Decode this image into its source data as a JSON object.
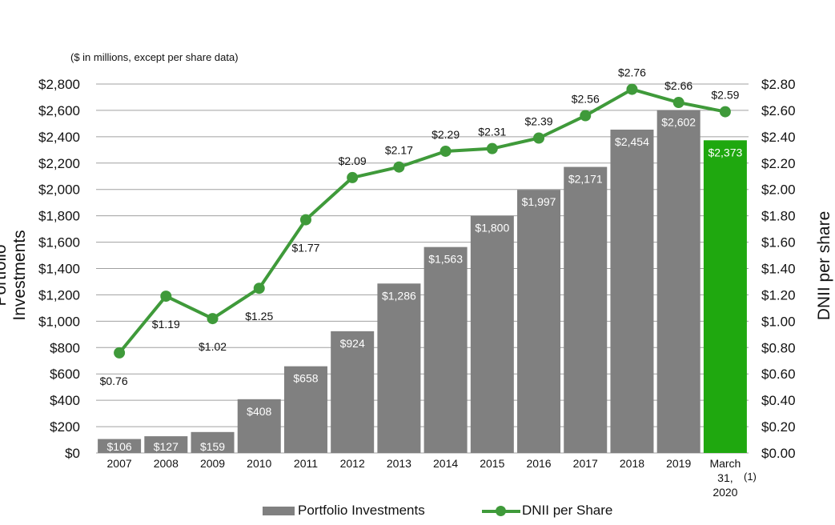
{
  "chart_data": {
    "type": "bar+line",
    "subtitle": "($ in millions, except per share data)",
    "categories": [
      "2007",
      "2008",
      "2009",
      "2010",
      "2011",
      "2012",
      "2013",
      "2014",
      "2015",
      "2016",
      "2017",
      "2018",
      "2019",
      "March 31, 2020"
    ],
    "category_lines": [
      [
        "2007"
      ],
      [
        "2008"
      ],
      [
        "2009"
      ],
      [
        "2010"
      ],
      [
        "2011"
      ],
      [
        "2012"
      ],
      [
        "2013"
      ],
      [
        "2014"
      ],
      [
        "2015"
      ],
      [
        "2016"
      ],
      [
        "2017"
      ],
      [
        "2018"
      ],
      [
        "2019"
      ],
      [
        "March",
        "31,",
        "2020"
      ]
    ],
    "footnote": "(1)",
    "left_axis": {
      "label": "Portfolio Investments",
      "ylim": [
        0,
        2800
      ],
      "ticks": [
        0,
        200,
        400,
        600,
        800,
        1000,
        1200,
        1400,
        1600,
        1800,
        2000,
        2200,
        2400,
        2600,
        2800
      ],
      "tick_labels": [
        "$0",
        "$200",
        "$400",
        "$600",
        "$800",
        "$1,000",
        "$1,200",
        "$1,400",
        "$1,600",
        "$1,800",
        "$2,000",
        "$2,200",
        "$2,400",
        "$2,600",
        "$2,800"
      ]
    },
    "right_axis": {
      "label": "DNII per share",
      "ylim": [
        0,
        2.8
      ],
      "tick_labels": [
        "$0.00",
        "$0.20",
        "$0.40",
        "$0.60",
        "$0.80",
        "$1.00",
        "$1.20",
        "$1.40",
        "$1.60",
        "$1.80",
        "$2.00",
        "$2.20",
        "$2.40",
        "$2.60",
        "$2.80"
      ]
    },
    "series": [
      {
        "name": "Portfolio Investments",
        "type": "bar",
        "axis": "left",
        "values": [
          106,
          127,
          159,
          408,
          658,
          924,
          1286,
          1563,
          1800,
          1997,
          2171,
          2454,
          2602,
          2373
        ],
        "labels": [
          "$106",
          "$127",
          "$159",
          "$408",
          "$658",
          "$924",
          "$1,286",
          "$1,563",
          "$1,800",
          "$1,997",
          "$2,171",
          "$2,454",
          "$2,602",
          "$2,373"
        ],
        "color": "#808080",
        "highlight_color": "#1fa80f"
      },
      {
        "name": "DNII per Share",
        "type": "line",
        "axis": "right",
        "values": [
          0.76,
          1.19,
          1.02,
          1.25,
          1.77,
          2.09,
          2.17,
          2.29,
          2.31,
          2.39,
          2.56,
          2.76,
          2.66,
          2.59
        ],
        "labels": [
          "$0.76",
          "$1.19",
          "$1.02",
          "$1.25",
          "$1.77",
          "$2.09",
          "$2.17",
          "$2.29",
          "$2.31",
          "$2.39",
          "$2.56",
          "$2.76",
          "$2.66",
          "$2.59"
        ],
        "label_position": [
          "below",
          "below",
          "below",
          "below",
          "below",
          "above",
          "above",
          "above",
          "above",
          "above",
          "above",
          "above",
          "above",
          "above"
        ],
        "color": "#3f9a3a"
      }
    ],
    "grid": true,
    "legend": "bottom-center",
    "gridline_color": "#a0a0a0"
  }
}
